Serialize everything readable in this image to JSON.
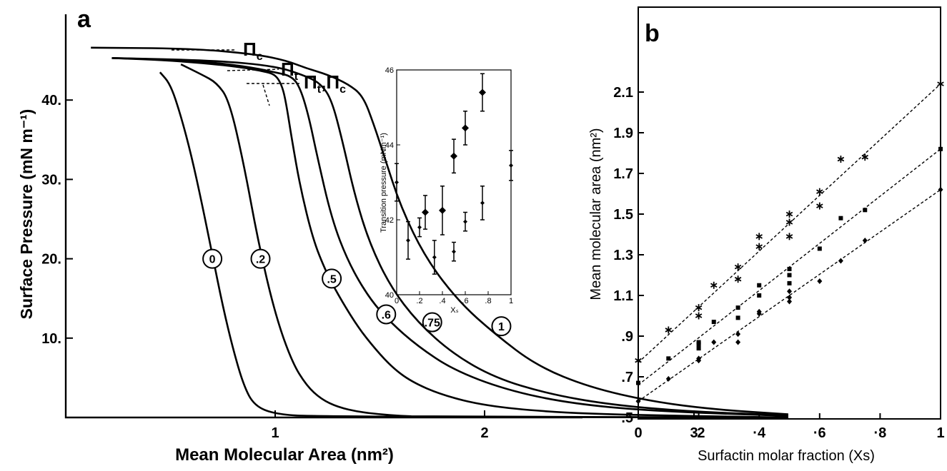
{
  "panel_a": {
    "letter": "a",
    "x_label": "Mean Molecular Area (nm²)",
    "y_label": "Surface Pressure (mN m⁻¹)",
    "x_ticks": [
      "1",
      "2",
      "3"
    ],
    "y_ticks": [
      "10.",
      "20.",
      "30.",
      "40."
    ],
    "pi_labels": {
      "pc": "Π",
      "pc_sub": "c",
      "pt": "Π",
      "pt_sub": "t",
      "ptc": "Π",
      "ptc_sub1": "t",
      "ptc_comma": ",Π",
      "ptc_sub2": "c"
    },
    "inset": {
      "y_label": "Transition pressure (mNm⁻¹)",
      "x_label": "Xₛ",
      "x_ticks": [
        "0",
        ".2",
        ".4",
        ".6",
        ".8",
        "1"
      ],
      "y_ticks": [
        "40",
        "42",
        "44",
        "46"
      ]
    }
  },
  "panel_b": {
    "letter": "b",
    "x_label": "Surfactin molar fraction (Xs)",
    "y_label": "Mean molecular area (nm²)",
    "x_ticks": [
      "0",
      "·2",
      "·4",
      "·6",
      "·8",
      "1"
    ],
    "y_ticks": [
      ".5",
      ".7",
      ".9",
      "1.1",
      "1.3",
      "1.5",
      "1.7",
      "1.9",
      "2.1"
    ]
  },
  "chart_data": [
    {
      "type": "line",
      "panel": "a",
      "xlabel": "Mean Molecular Area (nm²)",
      "ylabel": "Surface Pressure (mN m⁻¹)",
      "xlim": [
        0,
        3.6
      ],
      "ylim": [
        0,
        48
      ],
      "series": [
        {
          "name": "0",
          "x": [
            0.45,
            0.5,
            0.55,
            0.6,
            0.65,
            0.7,
            0.75,
            0.8,
            0.85,
            0.9,
            1.0,
            1.2,
            3.45
          ],
          "y": [
            43.5,
            42,
            38,
            33,
            27,
            20.5,
            14,
            8.5,
            4,
            1.5,
            0.4,
            0.1,
            0
          ]
        },
        {
          "name": ".2",
          "x": [
            0.55,
            0.65,
            0.72,
            0.78,
            0.85,
            0.92,
            1.0,
            1.08,
            1.15,
            1.22,
            1.3,
            1.4,
            1.5,
            1.6,
            1.7,
            3.45
          ],
          "y": [
            44.5,
            43.2,
            42.2,
            40,
            32,
            22,
            13,
            7,
            4,
            2.3,
            1.3,
            0.7,
            0.4,
            0.2,
            0.1,
            0
          ]
        },
        {
          "name": ".5",
          "x": [
            0.22,
            0.5,
            0.8,
            0.95,
            1.0,
            1.03,
            1.05,
            1.08,
            1.12,
            1.18,
            1.24,
            1.3,
            1.38,
            1.45,
            1.55,
            1.65,
            1.8,
            2.0,
            2.3,
            2.7,
            3.45
          ],
          "y": [
            45.3,
            45,
            44.3,
            43.6,
            43.2,
            42,
            40,
            35,
            29,
            22.5,
            18.5,
            15.5,
            12,
            9.5,
            6.5,
            4.5,
            2.8,
            1.5,
            0.7,
            0.3,
            0
          ]
        },
        {
          "name": ".6",
          "x": [
            0.22,
            0.6,
            0.85,
            1.0,
            1.08,
            1.12,
            1.16,
            1.2,
            1.27,
            1.35,
            1.45,
            1.55,
            1.68,
            1.85,
            2.1,
            2.4,
            2.8,
            3.45
          ],
          "y": [
            45.3,
            45,
            44.3,
            43.5,
            43,
            41.5,
            38,
            33,
            25,
            19.5,
            15,
            12,
            9,
            6,
            3.5,
            1.8,
            0.8,
            0.2
          ]
        },
        {
          "name": ".75",
          "x": [
            0.22,
            0.7,
            1.0,
            1.15,
            1.22,
            1.27,
            1.32,
            1.38,
            1.45,
            1.55,
            1.68,
            1.85,
            2.05,
            2.3,
            2.6,
            3.0,
            3.45
          ],
          "y": [
            45.3,
            45,
            44.3,
            43,
            42,
            40,
            35,
            28,
            22,
            16.5,
            12,
            8,
            5,
            3,
            1.6,
            0.7,
            0.3
          ]
        },
        {
          "name": "1",
          "x": [
            0.12,
            0.6,
            0.9,
            1.05,
            1.15,
            1.25,
            1.35,
            1.42,
            1.47,
            1.52,
            1.6,
            1.72,
            1.88,
            2.05,
            2.25,
            2.5,
            2.8,
            3.1,
            3.45
          ],
          "y": [
            46.6,
            46.5,
            45.8,
            45,
            44,
            43.2,
            42,
            40.5,
            37,
            33,
            26.5,
            20,
            14.5,
            10.5,
            6.5,
            3.8,
            2,
            1,
            0.4
          ]
        }
      ],
      "annotations": [
        "Πc",
        "Πt",
        "Πt,Πc"
      ]
    },
    {
      "type": "scatter",
      "panel": "a-inset",
      "xlabel": "Xs",
      "ylabel": "Transition pressure (mNm⁻¹)",
      "xlim": [
        0,
        1
      ],
      "ylim": [
        40,
        46
      ],
      "series": [
        {
          "name": "",
          "marker": "diamond-large",
          "x": [
            0.25,
            0.4,
            0.5,
            0.6,
            0.75
          ],
          "y": [
            42.2,
            42.25,
            43.7,
            44.45,
            45.4
          ],
          "err": [
            0.45,
            0.65,
            0.45,
            0.45,
            0.5
          ]
        },
        {
          "name": "",
          "marker": "diamond-small",
          "x": [
            0,
            0.1,
            0.2,
            0.33,
            0.5,
            0.6,
            0.75,
            1
          ],
          "y": [
            43,
            41.45,
            41.8,
            41.0,
            41.15,
            41.95,
            42.45,
            43.45
          ],
          "err": [
            0.5,
            0.5,
            0.25,
            0.45,
            0.25,
            0.25,
            0.45,
            0.4
          ]
        }
      ]
    },
    {
      "type": "scatter",
      "panel": "b",
      "xlabel": "Surfactin molar fraction (Xs)",
      "ylabel": "Mean molecular area (nm²)",
      "xlim": [
        0,
        1
      ],
      "ylim": [
        0.5,
        2.2
      ],
      "series": [
        {
          "name": "",
          "marker": "asterisk",
          "x": [
            0,
            0.1,
            0.2,
            0.2,
            0.25,
            0.33,
            0.33,
            0.4,
            0.4,
            0.5,
            0.5,
            0.5,
            0.6,
            0.6,
            0.67,
            0.75,
            1
          ],
          "y": [
            0.78,
            0.93,
            1.0,
            1.04,
            1.15,
            1.18,
            1.24,
            1.34,
            1.39,
            1.39,
            1.46,
            1.5,
            1.54,
            1.61,
            1.77,
            1.78,
            2.14
          ],
          "fit": [
            [
              0,
              0.77
            ],
            [
              1,
              2.14
            ]
          ]
        },
        {
          "name": "",
          "marker": "square",
          "x": [
            0,
            0.1,
            0.2,
            0.2,
            0.2,
            0.25,
            0.33,
            0.33,
            0.4,
            0.4,
            0.5,
            0.5,
            0.5,
            0.6,
            0.67,
            0.75,
            1
          ],
          "y": [
            0.67,
            0.79,
            0.84,
            0.86,
            0.87,
            0.97,
            0.99,
            1.04,
            1.1,
            1.15,
            1.16,
            1.2,
            1.23,
            1.33,
            1.48,
            1.52,
            1.82
          ],
          "fit": [
            [
              0,
              0.66
            ],
            [
              1,
              1.82
            ]
          ]
        },
        {
          "name": "",
          "marker": "diamond",
          "x": [
            0,
            0.1,
            0.2,
            0.2,
            0.25,
            0.33,
            0.33,
            0.4,
            0.4,
            0.5,
            0.5,
            0.5,
            0.6,
            0.67,
            0.75,
            1
          ],
          "y": [
            0.58,
            0.69,
            0.78,
            0.79,
            0.87,
            0.87,
            0.91,
            1.01,
            1.02,
            1.07,
            1.09,
            1.12,
            1.17,
            1.27,
            1.37,
            1.62
          ],
          "fit": [
            [
              0,
              0.58
            ],
            [
              1,
              1.62
            ]
          ]
        }
      ]
    }
  ]
}
